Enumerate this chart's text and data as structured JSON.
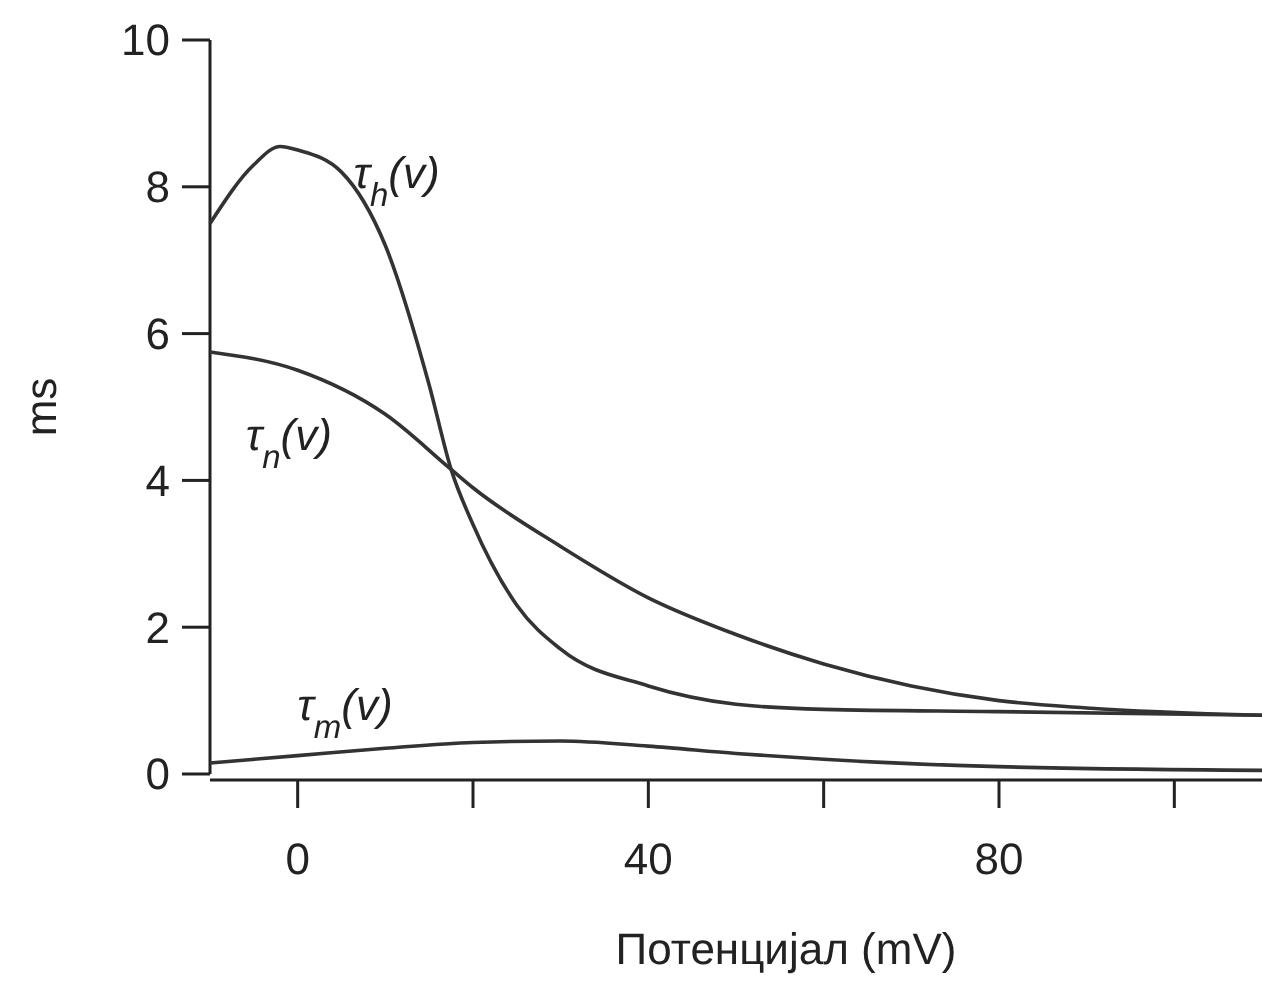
{
  "chart_data": {
    "type": "line",
    "xlabel": "Потенцијал (mV)",
    "ylabel": "ms",
    "xlim": [
      -10,
      110
    ],
    "ylim": [
      0,
      10
    ],
    "xticks": [
      0,
      {
        "value": 20,
        "label": null
      },
      40,
      {
        "value": 60,
        "label": null
      },
      80,
      {
        "value": 100,
        "label": null
      }
    ],
    "yticks": [
      0,
      2,
      4,
      6,
      8,
      10
    ],
    "grid": false,
    "marker": "none",
    "line_style": "solid",
    "series": [
      {
        "name": "τ$_{h}$(v)",
        "color": "#333333",
        "x": [
          -10,
          -5,
          -2,
          0,
          5,
          10,
          15,
          17.5,
          20,
          25,
          30,
          40,
          50,
          60,
          80,
          110
        ],
        "values": [
          7.5,
          8.3,
          8.55,
          8.5,
          8.2,
          7.2,
          5.3,
          4.15,
          3.4,
          2.3,
          1.7,
          1.2,
          0.95,
          0.88,
          0.85,
          0.8
        ]
      },
      {
        "name": "τ$_{n}$(v)",
        "color": "#333333",
        "x": [
          -10,
          0,
          10,
          17.5,
          20,
          30,
          40,
          50,
          60,
          70,
          80,
          90,
          110
        ],
        "values": [
          5.75,
          5.5,
          4.9,
          4.15,
          3.9,
          3.1,
          2.4,
          1.9,
          1.5,
          1.2,
          1.0,
          0.9,
          0.8
        ]
      },
      {
        "name": "τ$_{m}$(v)",
        "color": "#333333",
        "x": [
          -10,
          0,
          10,
          20,
          30,
          40,
          50,
          60,
          80,
          110
        ],
        "values": [
          0.15,
          0.25,
          0.35,
          0.43,
          0.45,
          0.38,
          0.28,
          0.2,
          0.1,
          0.05
        ]
      }
    ]
  }
}
